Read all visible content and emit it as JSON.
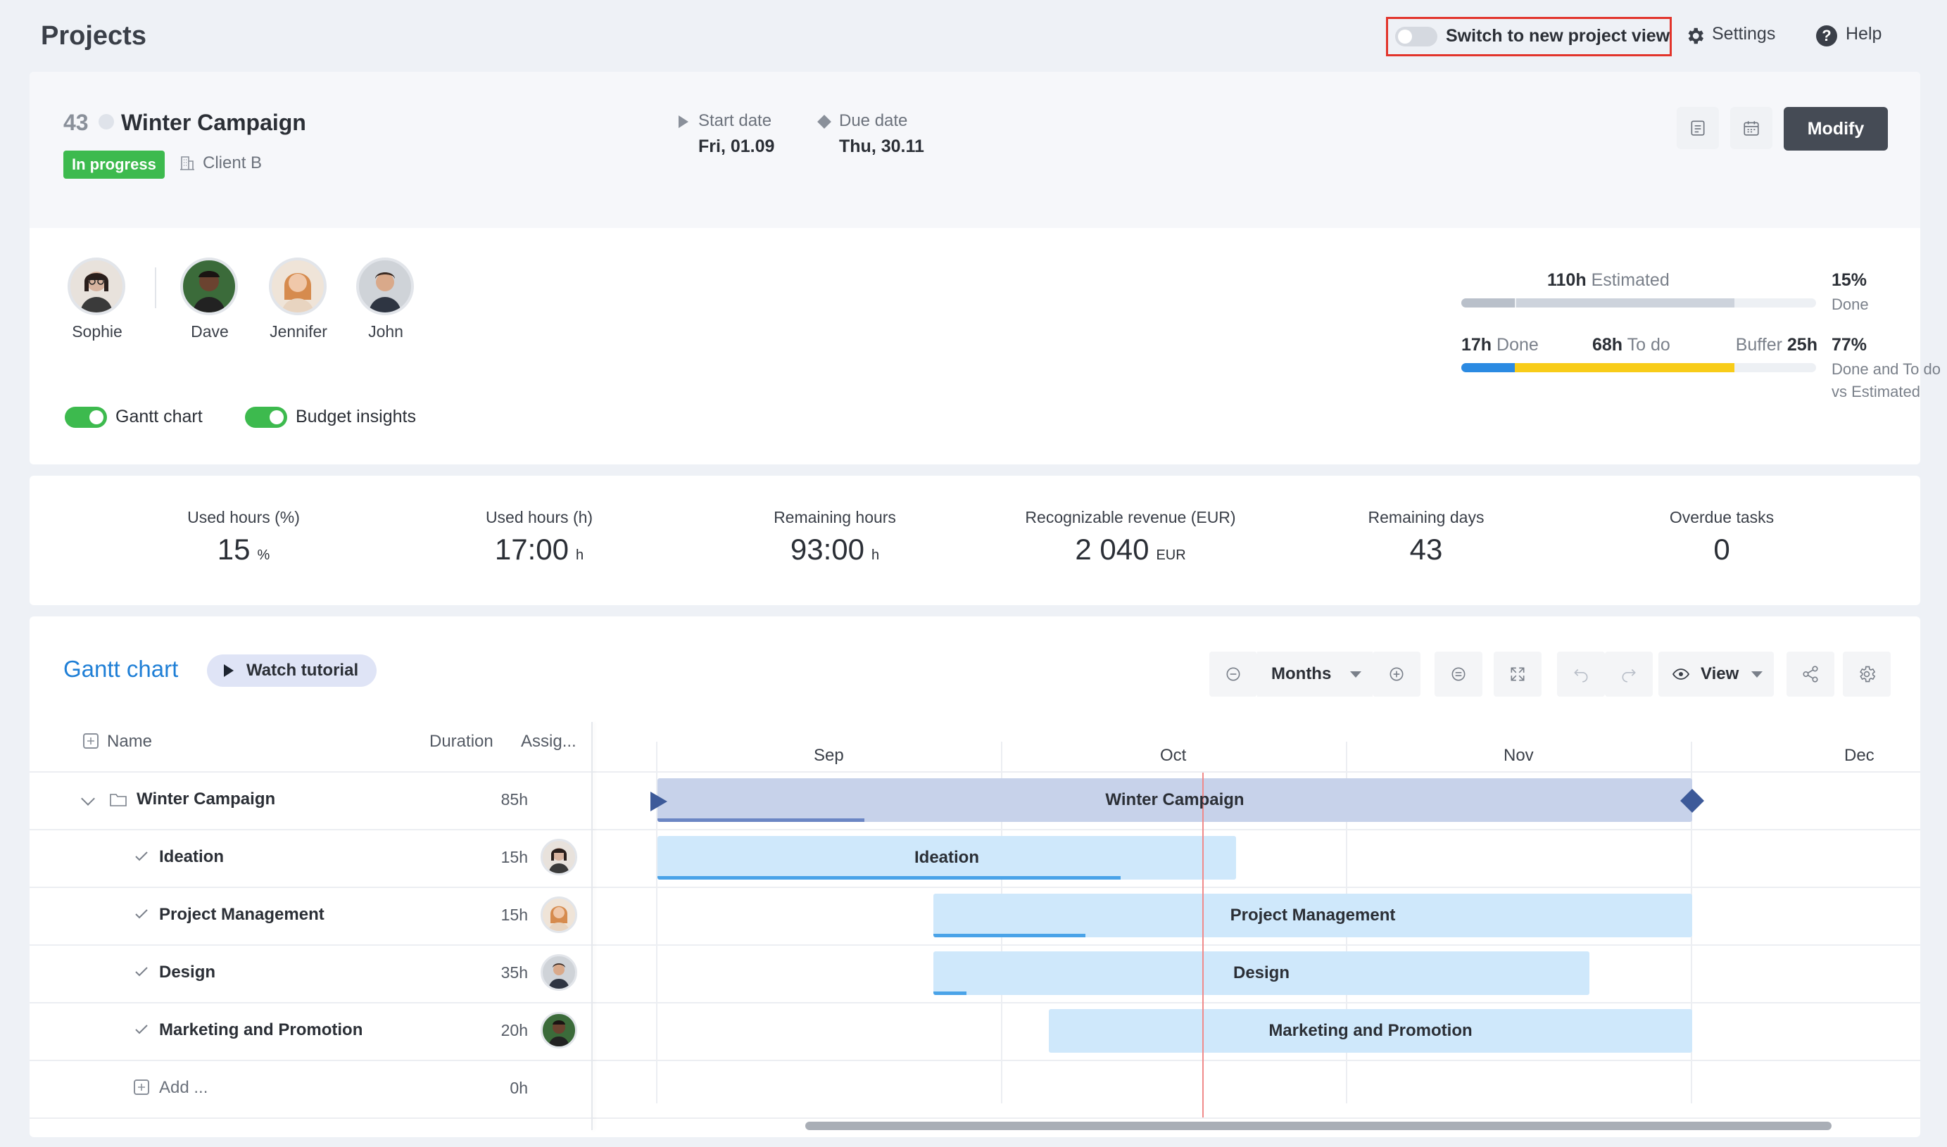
{
  "header": {
    "title": "Projects",
    "switch_label": "Switch to new project view",
    "settings": "Settings",
    "help": "Help"
  },
  "project": {
    "number": "43",
    "name": "Winter Campaign",
    "status": "In progress",
    "client": "Client B",
    "start_label": "Start date",
    "start_value": "Fri, 01.09",
    "due_label": "Due date",
    "due_value": "Thu, 30.11",
    "modify": "Modify"
  },
  "team": [
    {
      "name": "Sophie"
    },
    {
      "name": "Dave"
    },
    {
      "name": "Jennifer"
    },
    {
      "name": "John"
    }
  ],
  "toggles": {
    "gantt": "Gantt chart",
    "budget": "Budget insights"
  },
  "hours": {
    "estimated_value": "110h",
    "estimated_label": "Estimated",
    "done_pct": "15%",
    "done_pct_label": "Done",
    "done_value": "17h",
    "done_label": "Done",
    "todo_value": "68h",
    "todo_label": "To do",
    "buffer_label": "Buffer",
    "buffer_value": "25h",
    "vs_pct": "77%",
    "vs_label1": "Done and To do",
    "vs_label2": "vs Estimated",
    "done_fraction": 0.15,
    "todo_fraction": 0.62,
    "colors": {
      "done": "#2b8ae2",
      "todo": "#f8cc19",
      "estimated": "#c8ced8"
    }
  },
  "stats": [
    {
      "label": "Used hours (%)",
      "value": "15",
      "unit": "%"
    },
    {
      "label": "Used hours (h)",
      "value": "17:00",
      "unit": "h"
    },
    {
      "label": "Remaining hours",
      "value": "93:00",
      "unit": "h"
    },
    {
      "label": "Recognizable revenue (EUR)",
      "value": "2 040",
      "unit": "EUR"
    },
    {
      "label": "Remaining days",
      "value": "43",
      "unit": ""
    },
    {
      "label": "Overdue tasks",
      "value": "0",
      "unit": ""
    }
  ],
  "gantt": {
    "title": "Gantt chart",
    "tutorial": "Watch tutorial",
    "scale": "Months",
    "view": "View",
    "columns": {
      "name": "Name",
      "duration": "Duration",
      "assignee": "Assig..."
    },
    "months": [
      "Sep",
      "Oct",
      "Nov",
      "Dec"
    ],
    "rows": [
      {
        "name": "Winter Campaign",
        "duration": "85h",
        "progress": 0.2
      },
      {
        "name": "Ideation",
        "duration": "15h",
        "progress": 0.8
      },
      {
        "name": "Project Management",
        "duration": "15h",
        "progress": 0.2
      },
      {
        "name": "Design",
        "duration": "35h",
        "progress": 0.05
      },
      {
        "name": "Marketing and Promotion",
        "duration": "20h",
        "progress": 0
      },
      {
        "name": "Add ...",
        "duration": "0h"
      }
    ]
  }
}
